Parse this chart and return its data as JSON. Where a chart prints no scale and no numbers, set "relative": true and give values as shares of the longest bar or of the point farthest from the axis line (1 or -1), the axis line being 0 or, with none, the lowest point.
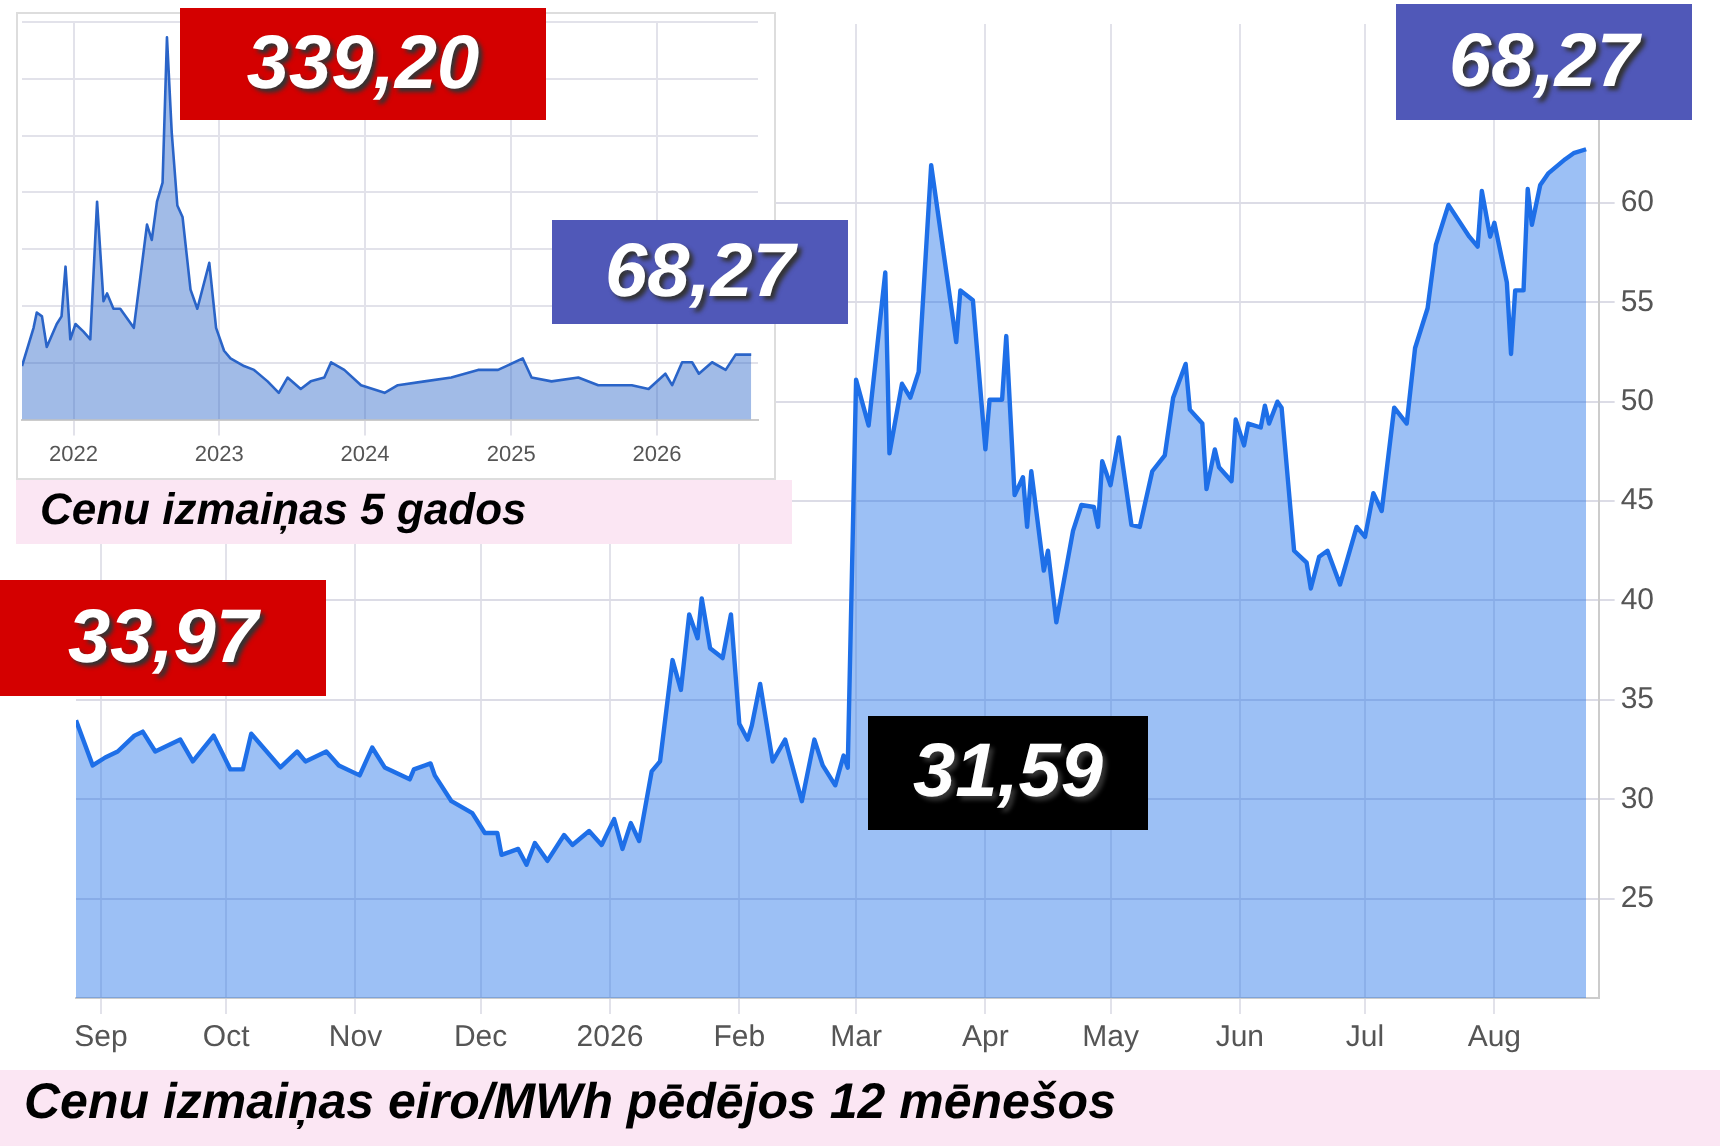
{
  "chart_data": [
    {
      "type": "area",
      "title": "Cenu izmaiņas eiro/MWh pēdējos 12 mēnešos",
      "color": "#1e6fe8",
      "grid": true,
      "legend": false,
      "x": [
        "2025-08-26",
        "2025-08-30",
        "2025-09-02",
        "2025-09-05",
        "2025-09-09",
        "2025-09-11",
        "2025-09-14",
        "2025-09-20",
        "2025-09-23",
        "2025-09-28",
        "2025-10-02",
        "2025-10-05",
        "2025-10-07",
        "2025-10-14",
        "2025-10-18",
        "2025-10-20",
        "2025-10-25",
        "2025-10-28",
        "2025-11-02",
        "2025-11-05",
        "2025-11-08",
        "2025-11-14",
        "2025-11-15",
        "2025-11-19",
        "2025-11-20",
        "2025-11-24",
        "2025-11-29",
        "2025-12-02",
        "2025-12-05",
        "2025-12-06",
        "2025-12-10",
        "2025-12-12",
        "2025-12-14",
        "2025-12-17",
        "2025-12-21",
        "2025-12-23",
        "2025-12-27",
        "2025-12-30",
        "2026-01-02",
        "2026-01-04",
        "2026-01-06",
        "2026-01-08",
        "2026-01-11",
        "2026-01-13",
        "2026-01-16",
        "2026-01-18",
        "2026-01-20",
        "2026-01-22",
        "2026-01-23",
        "2026-01-25",
        "2026-01-28",
        "2026-01-30",
        "2026-02-01",
        "2026-02-03",
        "2026-02-04",
        "2026-02-06",
        "2026-02-09",
        "2026-02-12",
        "2026-02-16",
        "2026-02-19",
        "2026-02-21",
        "2026-02-24",
        "2026-02-26",
        "2026-02-27",
        "2026-03-01",
        "2026-03-04",
        "2026-03-08",
        "2026-03-09",
        "2026-03-12",
        "2026-03-14",
        "2026-03-16",
        "2026-03-19",
        "2026-03-25",
        "2026-03-26",
        "2026-03-29",
        "2026-04-01",
        "2026-04-02",
        "2026-04-05",
        "2026-04-06",
        "2026-04-08",
        "2026-04-10",
        "2026-04-11",
        "2026-04-12",
        "2026-04-15",
        "2026-04-16",
        "2026-04-18",
        "2026-04-22",
        "2026-04-24",
        "2026-04-27",
        "2026-04-28",
        "2026-04-29",
        "2026-05-01",
        "2026-05-03",
        "2026-05-06",
        "2026-05-08",
        "2026-05-11",
        "2026-05-14",
        "2026-05-16",
        "2026-05-19",
        "2026-05-20",
        "2026-05-23",
        "2026-05-24",
        "2026-05-26",
        "2026-05-27",
        "2026-05-30",
        "2026-05-31",
        "2026-06-02",
        "2026-06-03",
        "2026-06-06",
        "2026-06-07",
        "2026-06-08",
        "2026-06-10",
        "2026-06-11",
        "2026-06-14",
        "2026-06-17",
        "2026-06-18",
        "2026-06-20",
        "2026-06-22",
        "2026-06-25",
        "2026-06-29",
        "2026-07-01",
        "2026-07-03",
        "2026-07-05",
        "2026-07-08",
        "2026-07-11",
        "2026-07-13",
        "2026-07-16",
        "2026-07-18",
        "2026-07-21",
        "2026-07-26",
        "2026-07-28",
        "2026-07-29",
        "2026-07-31",
        "2026-08-01",
        "2026-08-04",
        "2026-08-05",
        "2026-08-06",
        "2026-08-08",
        "2026-08-09",
        "2026-08-10",
        "2026-08-12",
        "2026-08-14",
        "2026-08-18",
        "2026-08-20",
        "2026-08-23"
      ],
      "values": [
        33.97,
        31.7,
        32.1,
        32.4,
        33.2,
        33.4,
        32.4,
        33.0,
        31.9,
        33.2,
        31.5,
        31.5,
        33.3,
        31.6,
        32.4,
        31.9,
        32.4,
        31.7,
        31.2,
        32.6,
        31.6,
        31.0,
        31.5,
        31.8,
        31.2,
        29.9,
        29.3,
        28.3,
        28.3,
        27.2,
        27.5,
        26.7,
        27.8,
        26.9,
        28.2,
        27.7,
        28.4,
        27.7,
        29.0,
        27.5,
        28.8,
        27.9,
        31.4,
        31.9,
        37.0,
        35.5,
        39.3,
        38.1,
        40.1,
        37.6,
        37.1,
        39.3,
        33.8,
        33.0,
        33.7,
        35.8,
        31.9,
        33.0,
        29.9,
        33.0,
        31.7,
        30.7,
        32.2,
        31.59,
        51.1,
        48.8,
        56.5,
        47.4,
        50.9,
        50.2,
        51.5,
        61.9,
        53.0,
        55.6,
        55.1,
        47.6,
        50.1,
        50.1,
        53.3,
        45.3,
        46.2,
        43.7,
        46.5,
        41.5,
        42.5,
        38.9,
        43.5,
        44.8,
        44.7,
        43.7,
        47.0,
        45.8,
        48.2,
        43.8,
        43.7,
        46.5,
        47.3,
        50.2,
        51.9,
        49.6,
        48.9,
        45.6,
        47.6,
        46.7,
        46.0,
        49.1,
        47.8,
        48.9,
        48.7,
        49.8,
        48.9,
        50.0,
        49.7,
        42.5,
        41.9,
        40.6,
        42.2,
        42.5,
        40.8,
        43.7,
        43.2,
        45.4,
        44.5,
        49.7,
        48.9,
        52.7,
        54.7,
        57.9,
        59.9,
        58.3,
        57.8,
        60.6,
        58.3,
        59.0,
        56.0,
        52.4,
        55.6,
        55.6,
        60.7,
        58.9,
        60.9,
        61.5,
        62.2,
        62.5,
        62.7
      ],
      "xlim": [
        "2025-08-26",
        "2026-08-26"
      ],
      "xticks": [
        {
          "value": "2025-09-01",
          "label": "Sep"
        },
        {
          "value": "2025-10-01",
          "label": "Oct"
        },
        {
          "value": "2025-11-01",
          "label": "Nov"
        },
        {
          "value": "2025-12-01",
          "label": "Dec"
        },
        {
          "value": "2026-01-01",
          "label": "2026"
        },
        {
          "value": "2026-02-01",
          "label": "Feb"
        },
        {
          "value": "2026-03-01",
          "label": "Mar"
        },
        {
          "value": "2026-04-01",
          "label": "Apr"
        },
        {
          "value": "2026-05-01",
          "label": "May"
        },
        {
          "value": "2026-06-01",
          "label": "Jun"
        },
        {
          "value": "2026-07-01",
          "label": "Jul"
        },
        {
          "value": "2026-08-01",
          "label": "Aug"
        }
      ],
      "ylim": [
        20,
        69
      ],
      "yticks": [
        25,
        30,
        35,
        40,
        45,
        50,
        55,
        60
      ],
      "annotations": [
        "33,97",
        "31,59",
        "68,27"
      ]
    },
    {
      "type": "area",
      "title": "Cenu izmaiņas 5 gados",
      "color": "#2a64c8",
      "grid": true,
      "legend": false,
      "relative": true,
      "x": [
        "2021-08-25",
        "2021-09-23",
        "2021-10-01",
        "2021-10-14",
        "2021-10-26",
        "2021-11-20",
        "2021-12-02",
        "2021-12-12",
        "2021-12-24",
        "2022-01-06",
        "2022-01-26",
        "2022-02-12",
        "2022-03-01",
        "2022-03-17",
        "2022-03-26",
        "2022-04-11",
        "2022-04-28",
        "2022-06-01",
        "2022-06-17",
        "2022-07-04",
        "2022-07-16",
        "2022-07-29",
        "2022-08-12",
        "2022-08-23",
        "2022-09-04",
        "2022-09-18",
        "2022-10-01",
        "2022-10-21",
        "2022-11-07",
        "2022-12-07",
        "2022-12-24",
        "2023-01-13",
        "2023-01-29",
        "2023-03-04",
        "2023-03-29",
        "2023-05-02",
        "2023-05-30",
        "2023-06-21",
        "2023-07-24",
        "2023-08-18",
        "2023-09-21",
        "2023-10-08",
        "2023-11-10",
        "2023-12-22",
        "2024-02-19",
        "2024-03-23",
        "2024-05-29",
        "2024-08-04",
        "2024-10-10",
        "2024-11-29",
        "2025-01-30",
        "2025-02-21",
        "2025-04-12",
        "2025-06-18",
        "2025-08-07",
        "2025-10-30",
        "2025-12-11",
        "2026-01-22",
        "2026-02-08",
        "2026-03-05",
        "2026-03-30",
        "2026-04-16",
        "2026-05-19",
        "2026-06-22",
        "2026-07-17",
        "2026-08-25"
      ],
      "values": [
        0.14,
        0.24,
        0.28,
        0.27,
        0.19,
        0.25,
        0.27,
        0.4,
        0.21,
        0.25,
        0.23,
        0.21,
        0.57,
        0.31,
        0.33,
        0.29,
        0.29,
        0.24,
        0.37,
        0.51,
        0.47,
        0.57,
        0.62,
        1,
        0.75,
        0.56,
        0.53,
        0.34,
        0.29,
        0.41,
        0.24,
        0.18,
        0.16,
        0.14,
        0.13,
        0.1,
        0.07,
        0.11,
        0.08,
        0.1,
        0.11,
        0.15,
        0.13,
        0.09,
        0.07,
        0.09,
        0.1,
        0.11,
        0.13,
        0.13,
        0.16,
        0.11,
        0.1,
        0.11,
        0.09,
        0.09,
        0.08,
        0.12,
        0.09,
        0.15,
        0.15,
        0.12,
        0.15,
        0.13,
        0.17,
        0.17
      ],
      "xlim": [
        "2021-08-25",
        "2026-09-11"
      ],
      "xticks": [
        {
          "value": "2022-01-01",
          "label": "2022"
        },
        {
          "value": "2023-01-01",
          "label": "2023"
        },
        {
          "value": "2024-01-01",
          "label": "2024"
        },
        {
          "value": "2025-01-01",
          "label": "2025"
        },
        {
          "value": "2026-01-01",
          "label": "2026"
        }
      ],
      "annotations": [
        "339,20",
        "68,27"
      ]
    }
  ]
}
